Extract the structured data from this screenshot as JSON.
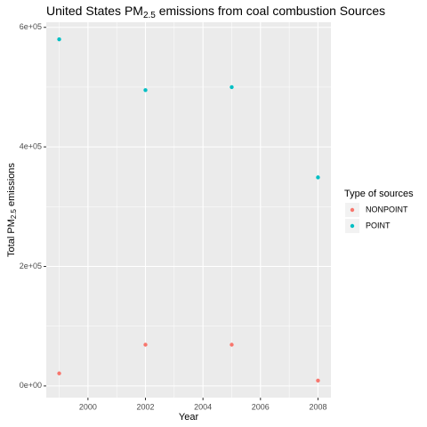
{
  "chart_data": {
    "type": "scatter",
    "title": [
      "United States PM",
      "2.5",
      " emissions from coal combustion Sources"
    ],
    "x_label": "Year",
    "y_label": [
      "Total PM",
      "2.5",
      " emissions"
    ],
    "legend_title": "Type of sources",
    "legend_position": "right",
    "series": [
      {
        "name": "NONPOINT",
        "color": "#F8766D",
        "x": [
          1999,
          2002,
          2005,
          2008
        ],
        "values": [
          21000,
          69000,
          69000,
          9000
        ]
      },
      {
        "name": "POINT",
        "color": "#00BFC4",
        "x": [
          1999,
          2002,
          2005,
          2008
        ],
        "values": [
          580000,
          495000,
          500000,
          349000
        ]
      }
    ],
    "xlim": [
      1998.55,
      2008.45
    ],
    "xticks": [
      2000,
      2002,
      2004,
      2006,
      2008
    ],
    "x_minor_ticks": [
      1999,
      2001,
      2003,
      2005,
      2007
    ],
    "ylim": [
      -19550,
      608550
    ],
    "yticks": [
      {
        "value": 0,
        "label": "0e+00"
      },
      {
        "value": 200000,
        "label": "2e+05"
      },
      {
        "value": 400000,
        "label": "4e+05"
      },
      {
        "value": 600000,
        "label": "6e+05"
      }
    ],
    "y_minor_ticks": [
      100000,
      300000,
      500000
    ],
    "grid": true
  }
}
